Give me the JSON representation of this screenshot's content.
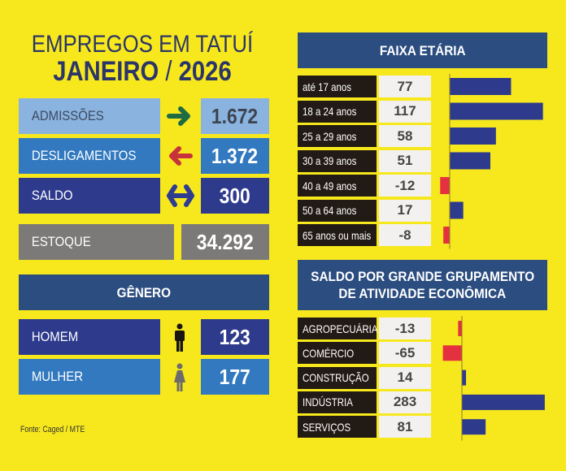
{
  "header": {
    "title_line1": "EMPREGOS EM TATUÍ",
    "title_month": "JANEIRO",
    "title_sep": " / ",
    "title_year": "2026"
  },
  "summary": {
    "admissoes": {
      "label": "ADMISSÕES",
      "value": "1.672",
      "icon": "arrow-right-icon",
      "icon_color": "#1e6b44"
    },
    "desligamentos": {
      "label": "DESLIGAMENTOS",
      "value": "1.372",
      "icon": "arrow-left-icon",
      "icon_color": "#c8323a"
    },
    "saldo": {
      "label": "SALDO",
      "value": "300",
      "icon": "double-arrow-icon",
      "icon_color": "#2e3d8f"
    },
    "estoque": {
      "label": "ESTOQUE",
      "value": "34.292"
    }
  },
  "genero": {
    "title": "GÊNERO",
    "items": [
      {
        "label": "HOMEM",
        "value": "123",
        "icon": "man-icon"
      },
      {
        "label": "MULHER",
        "value": "177",
        "icon": "woman-icon"
      }
    ]
  },
  "source": "Fonte: Caged / MTE",
  "colors": {
    "background": "#f7e81e",
    "positive_bar": "#2e3a8c",
    "negative_bar": "#e5313f",
    "header_blue": "#2b4d7f"
  },
  "chart_data": [
    {
      "type": "bar",
      "orientation": "horizontal",
      "title": "FAIXA ETÁRIA",
      "categories": [
        "até 17 anos",
        "18 a 24 anos",
        "25 a 29 anos",
        "30 a 39 anos",
        "40 a 49 anos",
        "50 a 64 anos",
        "65 anos ou mais"
      ],
      "values": [
        77,
        117,
        58,
        51,
        -12,
        17,
        -8
      ],
      "value_labels": [
        "77",
        "117",
        "58",
        "51",
        "-12",
        "17",
        "-8"
      ],
      "xlim": [
        -14,
        120
      ],
      "grid": false
    },
    {
      "type": "bar",
      "orientation": "horizontal",
      "title": "SALDO POR GRANDE GRUPAMENTO DE ATIVIDADE ECONÔMICA",
      "title_line1": "SALDO POR GRANDE GRUPAMENTO",
      "title_line2": "DE ATIVIDADE ECONÔMICA",
      "categories": [
        "AGROPECUÁRIA",
        "COMÉRCIO",
        "CONSTRUÇÃO",
        "INDÚSTRIA",
        "SERVIÇOS"
      ],
      "values": [
        -13,
        -65,
        14,
        283,
        81
      ],
      "value_labels": [
        "-13",
        "-65",
        "14",
        "283",
        "81"
      ],
      "xlim": [
        -70,
        290
      ],
      "grid": false
    }
  ]
}
